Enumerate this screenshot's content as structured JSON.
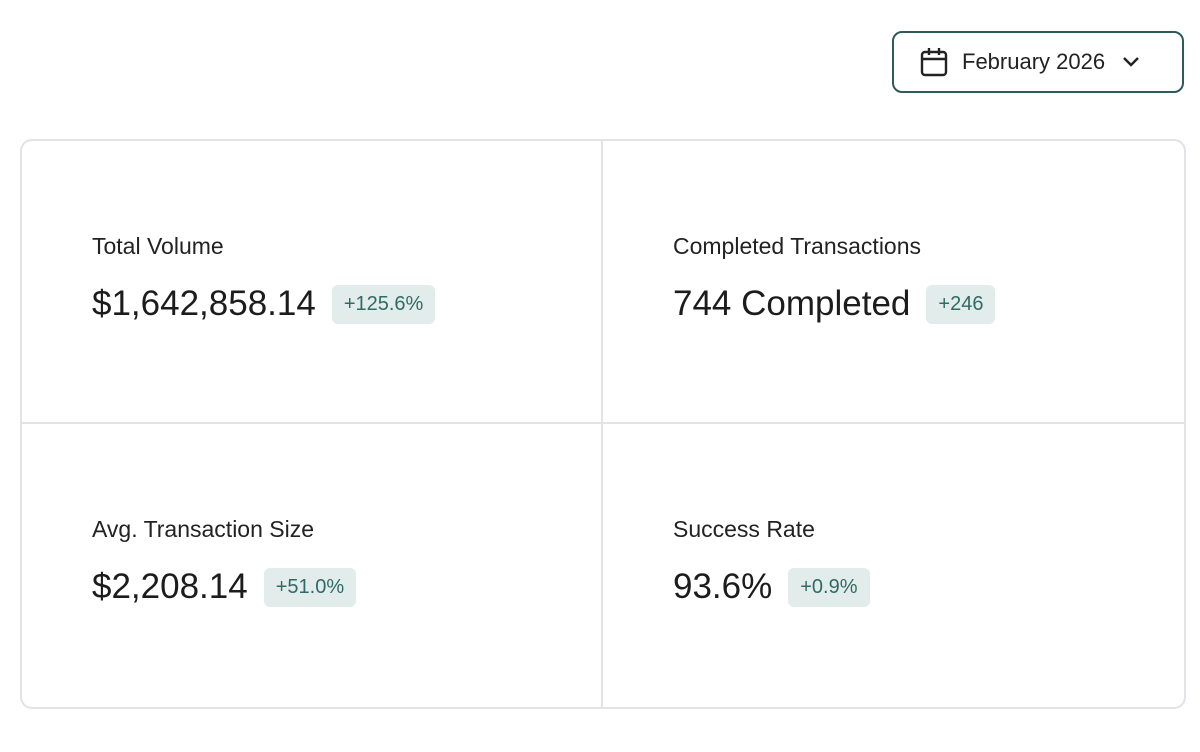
{
  "date_picker": {
    "label": "February 2026"
  },
  "metrics": [
    {
      "label": "Total Volume",
      "value": "$1,642,858.14",
      "change": "+125.6%"
    },
    {
      "label": "Completed Transactions",
      "value": "744 Completed",
      "change": "+246"
    },
    {
      "label": "Avg. Transaction Size",
      "value": "$2,208.14",
      "change": "+51.0%"
    },
    {
      "label": "Success Rate",
      "value": "93.6%",
      "change": "+0.9%"
    }
  ]
}
